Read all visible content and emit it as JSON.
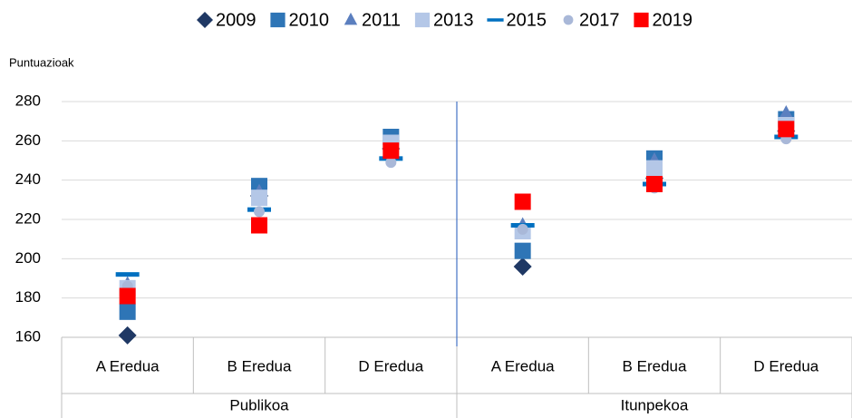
{
  "chart_data": {
    "type": "dot",
    "y_label": "Puntuazioak",
    "categories": [
      "A Eredua",
      "B Eredua",
      "D Eredua",
      "A Eredua",
      "B Eredua",
      "D Eredua"
    ],
    "group_labels": [
      "Publikoa",
      "Itunpekoa"
    ],
    "ylim": [
      160,
      280
    ],
    "yticks": [
      160,
      180,
      200,
      220,
      240,
      260,
      280
    ],
    "grid": true,
    "series": [
      {
        "name": "2009",
        "color": "#1f3864",
        "marker": "diamond",
        "values": [
          161,
          232,
          256,
          196,
          241,
          265
        ]
      },
      {
        "name": "2010",
        "color": "#2e75b6",
        "marker": "square",
        "values": [
          173,
          237,
          262,
          204,
          251,
          271
        ]
      },
      {
        "name": "2011",
        "color": "#5b7fbf",
        "marker": "triangle",
        "values": [
          187,
          234,
          258,
          217,
          250,
          274
        ]
      },
      {
        "name": "2013",
        "color": "#b4c7e7",
        "marker": "square",
        "values": [
          185,
          231,
          259,
          214,
          246,
          268
        ]
      },
      {
        "name": "2015",
        "color": "#0070c0",
        "marker": "dash",
        "values": [
          192,
          225,
          251,
          217,
          238,
          262
        ]
      },
      {
        "name": "2017",
        "color": "#a9b8d8",
        "marker": "circle",
        "values": [
          186,
          224,
          249,
          215,
          236,
          261
        ]
      },
      {
        "name": "2019",
        "color": "#ff0000",
        "marker": "square",
        "values": [
          181,
          217,
          255,
          229,
          238,
          266
        ]
      }
    ]
  }
}
